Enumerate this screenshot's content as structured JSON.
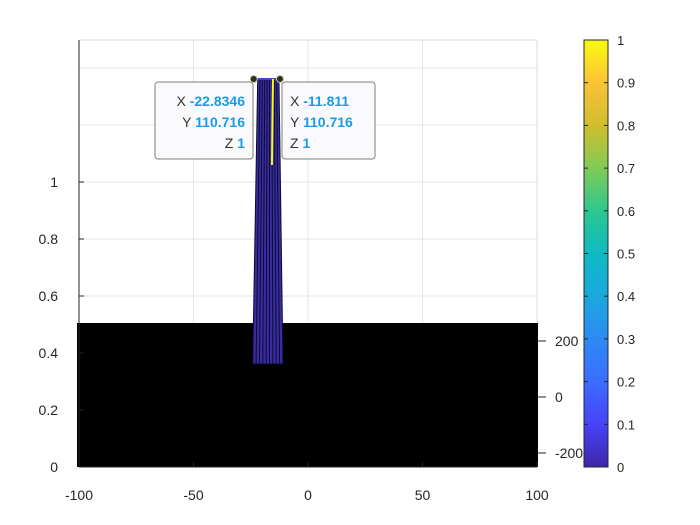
{
  "chart_data": {
    "type": "surface",
    "title": "",
    "xlabel": "",
    "ylabel": "",
    "zlabel": "",
    "view": "3-D surface, near side view",
    "grid": true,
    "axes": {
      "x": {
        "ticks": [
          -100,
          -50,
          0,
          50,
          100
        ],
        "range": [
          -100,
          100
        ]
      },
      "z": {
        "ticks": [
          0,
          0.2,
          0.4,
          0.6,
          0.8,
          1
        ],
        "range": [
          0,
          1
        ]
      },
      "y": {
        "ticks": [
          -200,
          0,
          200
        ],
        "tick_labels": [
          "-200",
          "0",
          "200"
        ]
      }
    },
    "surface": {
      "base_color": "#000000",
      "peak": {
        "x_range": [
          -22.8346,
          -11.811
        ],
        "y": 110.716,
        "z": 1
      }
    },
    "datatips": [
      {
        "x_key": "X",
        "x": "-22.8346",
        "y_key": "Y",
        "y": "110.716",
        "z_key": "Z",
        "z": "1"
      },
      {
        "x_key": "X",
        "x": "-11.811",
        "y_key": "Y",
        "y": "110.716",
        "z_key": "Z",
        "z": "1"
      }
    ],
    "colorbar": {
      "colormap": "parula",
      "range": [
        0,
        1
      ],
      "ticks": [
        0,
        0.1,
        0.2,
        0.3,
        0.4,
        0.5,
        0.6,
        0.7,
        0.8,
        0.9,
        1
      ],
      "tick_labels": [
        "0",
        "0.1",
        "0.2",
        "0.3",
        "0.4",
        "0.5",
        "0.6",
        "0.7",
        "0.8",
        "0.9",
        "1"
      ],
      "location": "right"
    }
  }
}
